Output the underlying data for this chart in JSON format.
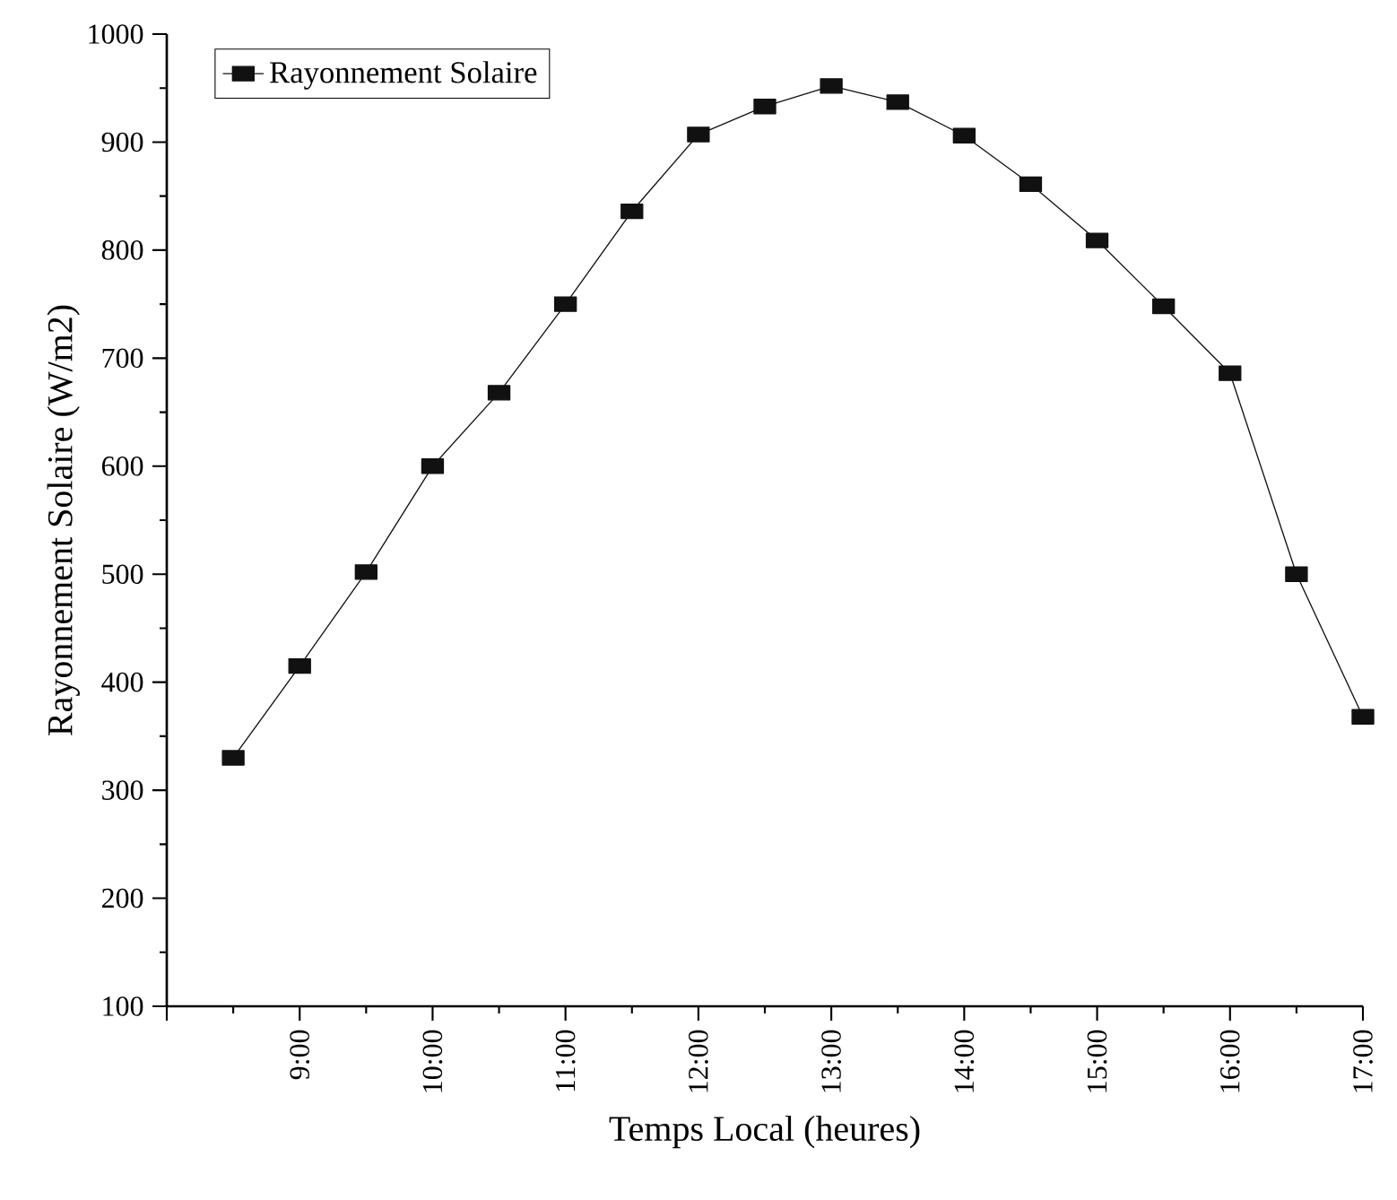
{
  "chart_data": {
    "type": "line",
    "xlabel": "Temps Local (heures)",
    "ylabel": "Rayonnement Solaire (W/m2)",
    "x": [
      8.5,
      9,
      9.5,
      10,
      10.5,
      11,
      11.5,
      12,
      12.5,
      13,
      13.5,
      14,
      14.5,
      15,
      15.5,
      16,
      16.5,
      17
    ],
    "series": [
      {
        "name": "Rayonnement Solaire",
        "color": "#111111",
        "values": [
          330,
          415,
          502,
          600,
          668,
          750,
          836,
          907,
          933,
          952,
          937,
          906,
          861,
          809,
          748,
          686,
          500,
          368
        ]
      }
    ],
    "xlim": [
      8,
      17
    ],
    "xticks": [
      {
        "value": 8,
        "label": null
      },
      {
        "value": 9,
        "label": "9:00"
      },
      {
        "value": 10,
        "label": "10:00"
      },
      {
        "value": 11,
        "label": "11:00"
      },
      {
        "value": 12,
        "label": "12:00"
      },
      {
        "value": 13,
        "label": "13:00"
      },
      {
        "value": 14,
        "label": "14:00"
      },
      {
        "value": 15,
        "label": "15:00"
      },
      {
        "value": 16,
        "label": "16:00"
      },
      {
        "value": 17,
        "label": "17:00"
      }
    ],
    "ylim": [
      100,
      1000
    ],
    "yticks": [
      100,
      200,
      300,
      400,
      500,
      600,
      700,
      800,
      900,
      1000
    ],
    "legend": "top left",
    "marker": "square",
    "line_style": "solid",
    "grid": false
  }
}
